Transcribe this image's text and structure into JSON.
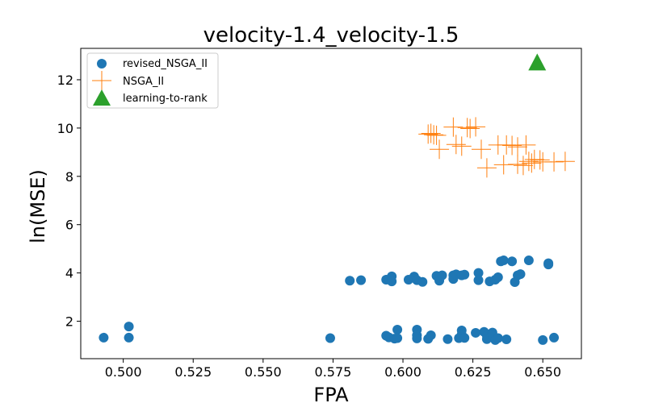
{
  "chart_data": {
    "type": "scatter",
    "title": "velocity-1.4_velocity-1.5",
    "xlabel": "FPA",
    "ylabel": "ln(MSE)",
    "xlim": [
      0.4848,
      0.6638
    ],
    "ylim": [
      0.45,
      13.3
    ],
    "xticks": [
      0.5,
      0.525,
      0.55,
      0.575,
      0.6,
      0.625,
      0.65
    ],
    "xtick_labels": [
      "0.500",
      "0.525",
      "0.550",
      "0.575",
      "0.600",
      "0.625",
      "0.650"
    ],
    "yticks": [
      2,
      4,
      6,
      8,
      10,
      12
    ],
    "ytick_labels": [
      "2",
      "4",
      "6",
      "8",
      "10",
      "12"
    ],
    "grid": false,
    "legend_position": "upper-left",
    "series": [
      {
        "name": "revised_NSGA_II",
        "marker": "circle",
        "color": "#1f77b4",
        "points": [
          [
            0.493,
            1.32
          ],
          [
            0.502,
            1.78
          ],
          [
            0.502,
            1.32
          ],
          [
            0.574,
            1.3
          ],
          [
            0.581,
            3.68
          ],
          [
            0.585,
            3.7
          ],
          [
            0.594,
            1.4
          ],
          [
            0.594,
            3.72
          ],
          [
            0.595,
            1.33
          ],
          [
            0.596,
            3.86
          ],
          [
            0.596,
            3.65
          ],
          [
            0.597,
            1.28
          ],
          [
            0.598,
            1.65
          ],
          [
            0.598,
            1.3
          ],
          [
            0.602,
            3.72
          ],
          [
            0.604,
            3.85
          ],
          [
            0.605,
            1.65
          ],
          [
            0.605,
            1.42
          ],
          [
            0.605,
            1.29
          ],
          [
            0.605,
            3.7
          ],
          [
            0.607,
            3.63
          ],
          [
            0.609,
            1.27
          ],
          [
            0.61,
            1.42
          ],
          [
            0.612,
            3.88
          ],
          [
            0.613,
            3.68
          ],
          [
            0.614,
            3.9
          ],
          [
            0.616,
            1.26
          ],
          [
            0.618,
            3.9
          ],
          [
            0.618,
            3.75
          ],
          [
            0.619,
            3.94
          ],
          [
            0.62,
            1.3
          ],
          [
            0.621,
            1.62
          ],
          [
            0.621,
            1.45
          ],
          [
            0.621,
            3.9
          ],
          [
            0.622,
            3.93
          ],
          [
            0.622,
            1.31
          ],
          [
            0.626,
            1.52
          ],
          [
            0.627,
            4.0
          ],
          [
            0.627,
            3.7
          ],
          [
            0.629,
            1.56
          ],
          [
            0.63,
            1.4
          ],
          [
            0.63,
            1.26
          ],
          [
            0.631,
            3.65
          ],
          [
            0.632,
            1.53
          ],
          [
            0.632,
            1.45
          ],
          [
            0.633,
            3.72
          ],
          [
            0.633,
            1.22
          ],
          [
            0.634,
            3.82
          ],
          [
            0.634,
            1.3
          ],
          [
            0.635,
            4.48
          ],
          [
            0.636,
            4.52
          ],
          [
            0.637,
            1.25
          ],
          [
            0.639,
            4.48
          ],
          [
            0.64,
            3.62
          ],
          [
            0.641,
            3.9
          ],
          [
            0.642,
            3.95
          ],
          [
            0.645,
            4.52
          ],
          [
            0.65,
            1.22
          ],
          [
            0.652,
            4.4
          ],
          [
            0.652,
            4.35
          ],
          [
            0.654,
            1.32
          ]
        ]
      },
      {
        "name": "NSGA_II",
        "marker": "plus",
        "color": "#ff7f0e",
        "points": [
          [
            0.609,
            9.75
          ],
          [
            0.61,
            9.78
          ],
          [
            0.611,
            9.72
          ],
          [
            0.612,
            9.7
          ],
          [
            0.613,
            9.12
          ],
          [
            0.618,
            10.04
          ],
          [
            0.619,
            9.32
          ],
          [
            0.621,
            9.25
          ],
          [
            0.623,
            10.02
          ],
          [
            0.624,
            9.98
          ],
          [
            0.626,
            10.05
          ],
          [
            0.628,
            9.12
          ],
          [
            0.63,
            8.35
          ],
          [
            0.634,
            9.3
          ],
          [
            0.636,
            8.48
          ],
          [
            0.637,
            9.3
          ],
          [
            0.639,
            9.28
          ],
          [
            0.641,
            8.5
          ],
          [
            0.641,
            9.22
          ],
          [
            0.643,
            8.45
          ],
          [
            0.644,
            9.3
          ],
          [
            0.645,
            8.62
          ],
          [
            0.646,
            8.55
          ],
          [
            0.647,
            8.7
          ],
          [
            0.649,
            8.68
          ],
          [
            0.65,
            8.6
          ],
          [
            0.654,
            8.6
          ],
          [
            0.658,
            8.62
          ]
        ]
      },
      {
        "name": "learning-to-rank",
        "marker": "triangle",
        "color": "#2ca02c",
        "points": [
          [
            0.648,
            12.72
          ]
        ]
      }
    ]
  }
}
